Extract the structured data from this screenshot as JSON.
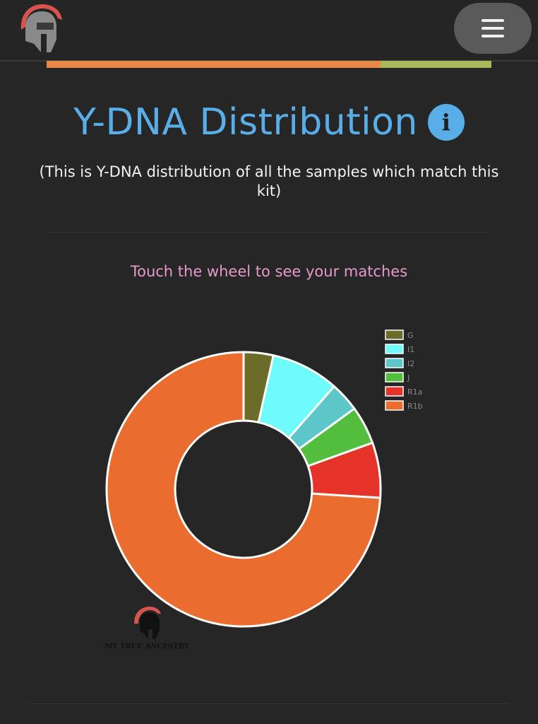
{
  "header": {
    "logo_icon": "spartan-helmet-icon",
    "menu_icon": "hamburger-icon"
  },
  "progress": {
    "fraction": 0.75,
    "fill_color": "#e8874a",
    "track_color": "#a9b85a"
  },
  "section": {
    "title": "Y-DNA Distribution",
    "info_icon": "info-icon",
    "info_glyph": "i",
    "subtitle": "(This is Y-DNA distribution of all the samples which match this kit)",
    "hint": "Touch the wheel to see your matches"
  },
  "chart_data": {
    "type": "pie",
    "title": "",
    "legend_position": "top-right",
    "categories": [
      "G",
      "I1",
      "I2",
      "J",
      "R1a",
      "R1b"
    ],
    "values": [
      3.5,
      8,
      3.5,
      4.5,
      6.5,
      74
    ],
    "colors": [
      "#6b6b2a",
      "#6ffafc",
      "#5cc6c8",
      "#53be3e",
      "#e6332a",
      "#eb6c2f"
    ],
    "watermark": "MY TRUE ANCESTRY"
  }
}
